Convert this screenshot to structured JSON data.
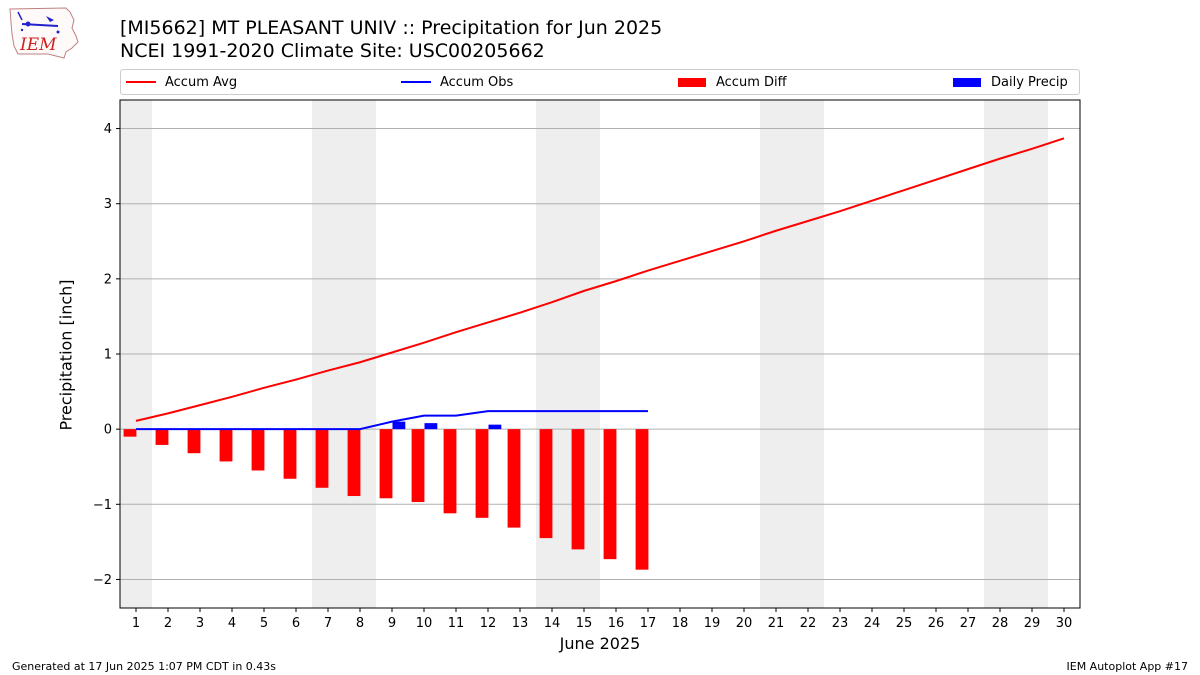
{
  "header": {
    "title_line1": "[MI5662] MT PLEASANT UNIV :: Precipitation for Jun 2025",
    "title_line2": "NCEI 1991-2020 Climate Site: USC00205662",
    "logo_text": "IEM"
  },
  "legend": {
    "accum_avg": "Accum Avg",
    "accum_obs": "Accum Obs",
    "accum_diff": "Accum Diff",
    "daily_precip": "Daily Precip"
  },
  "footer": {
    "generated": "Generated at 17 Jun 2025 1:07 PM CDT in 0.43s",
    "app": "IEM Autoplot App #17"
  },
  "colors": {
    "avg": "#ff0000",
    "obs": "#0000ff",
    "diff": "#ff0000",
    "daily": "#0000ff",
    "weekend_band": "#eeeeee",
    "grid": "#b0b0b0"
  },
  "chart_data": {
    "type": "bar",
    "xlabel": "June 2025",
    "ylabel": "Precipitation [inch]",
    "xlim": [
      0.5,
      30.5
    ],
    "ylim": [
      -2.38,
      4.38
    ],
    "y_ticks": [
      -2,
      -1,
      0,
      1,
      2,
      3,
      4
    ],
    "y_tick_labels": [
      "−2",
      "−1",
      "0",
      "1",
      "2",
      "3",
      "4"
    ],
    "x_ticks": [
      1,
      2,
      3,
      4,
      5,
      6,
      7,
      8,
      9,
      10,
      11,
      12,
      13,
      14,
      15,
      16,
      17,
      18,
      19,
      20,
      21,
      22,
      23,
      24,
      25,
      26,
      27,
      28,
      29,
      30
    ],
    "grid": "horizontal",
    "weekend_days": [
      1,
      7,
      8,
      14,
      15,
      21,
      22,
      28,
      29
    ],
    "series": [
      {
        "name": "Accum Avg",
        "kind": "line",
        "x": [
          1,
          2,
          3,
          4,
          5,
          6,
          7,
          8,
          9,
          10,
          11,
          12,
          13,
          14,
          15,
          16,
          17,
          18,
          19,
          20,
          21,
          22,
          23,
          24,
          25,
          26,
          27,
          28,
          29,
          30
        ],
        "values": [
          0.11,
          0.21,
          0.32,
          0.43,
          0.55,
          0.66,
          0.78,
          0.89,
          1.02,
          1.15,
          1.29,
          1.42,
          1.55,
          1.69,
          1.84,
          1.97,
          2.11,
          2.24,
          2.37,
          2.5,
          2.64,
          2.77,
          2.9,
          3.04,
          3.18,
          3.32,
          3.46,
          3.6,
          3.73,
          3.87
        ]
      },
      {
        "name": "Accum Obs",
        "kind": "line",
        "x": [
          1,
          2,
          3,
          4,
          5,
          6,
          7,
          8,
          9,
          10,
          11,
          12,
          13,
          14,
          15,
          16,
          17
        ],
        "values": [
          0.0,
          0.0,
          0.0,
          0.0,
          0.0,
          0.0,
          0.0,
          0.0,
          0.1,
          0.18,
          0.18,
          0.24,
          0.24,
          0.24,
          0.24,
          0.24,
          0.24
        ]
      },
      {
        "name": "Accum Diff",
        "kind": "bar",
        "x": [
          1,
          2,
          3,
          4,
          5,
          6,
          7,
          8,
          9,
          10,
          11,
          12,
          13,
          14,
          15,
          16,
          17
        ],
        "values": [
          -0.1,
          -0.21,
          -0.32,
          -0.43,
          -0.55,
          -0.66,
          -0.78,
          -0.89,
          -0.92,
          -0.97,
          -1.12,
          -1.18,
          -1.31,
          -1.45,
          -1.6,
          -1.73,
          -1.87
        ]
      },
      {
        "name": "Daily Precip",
        "kind": "bar",
        "x": [
          9,
          10,
          12
        ],
        "values": [
          0.1,
          0.08,
          0.06
        ]
      }
    ]
  }
}
